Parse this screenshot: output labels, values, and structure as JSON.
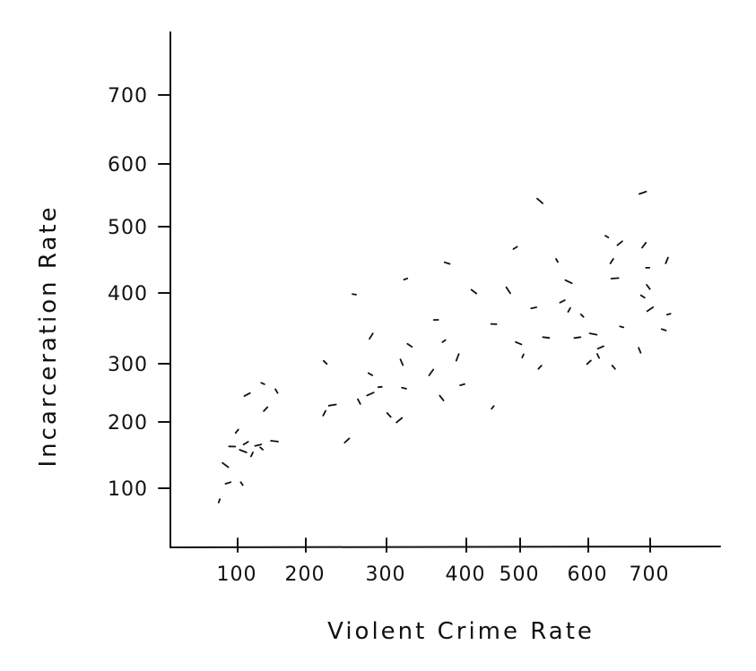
{
  "chart_data": {
    "type": "scatter",
    "title": "",
    "xlabel": "Violent Crime Rate",
    "ylabel": "Incarceration Rate",
    "x_ticks": [
      100,
      200,
      300,
      400,
      500,
      600,
      700
    ],
    "y_ticks": [
      100,
      200,
      300,
      400,
      500,
      600,
      700
    ],
    "x_tick_labels": [
      "100",
      "200",
      "300",
      "400",
      "500",
      "600",
      "700"
    ],
    "y_tick_labels": [
      "100",
      "200",
      "300",
      "400",
      "500",
      "600",
      "700"
    ],
    "xlim": [
      15,
      760
    ],
    "ylim": [
      10,
      800
    ],
    "grid": false,
    "legend": "none",
    "mark_color": "#111111",
    "points": [
      {
        "x": 73,
        "y": 81
      },
      {
        "x": 86,
        "y": 108
      },
      {
        "x": 82,
        "y": 135
      },
      {
        "x": 99,
        "y": 186
      },
      {
        "x": 92,
        "y": 163
      },
      {
        "x": 106,
        "y": 107
      },
      {
        "x": 112,
        "y": 168
      },
      {
        "x": 108,
        "y": 156
      },
      {
        "x": 121,
        "y": 151
      },
      {
        "x": 130,
        "y": 165
      },
      {
        "x": 135,
        "y": 160
      },
      {
        "x": 141,
        "y": 222
      },
      {
        "x": 154,
        "y": 171
      },
      {
        "x": 157,
        "y": 253
      },
      {
        "x": 114,
        "y": 247
      },
      {
        "x": 137,
        "y": 266
      },
      {
        "x": 223,
        "y": 215
      },
      {
        "x": 233,
        "y": 229
      },
      {
        "x": 224,
        "y": 302
      },
      {
        "x": 251,
        "y": 172
      },
      {
        "x": 260,
        "y": 398
      },
      {
        "x": 266,
        "y": 235
      },
      {
        "x": 280,
        "y": 248
      },
      {
        "x": 280,
        "y": 282
      },
      {
        "x": 281,
        "y": 339
      },
      {
        "x": 292,
        "y": 260
      },
      {
        "x": 303,
        "y": 212
      },
      {
        "x": 316,
        "y": 203
      },
      {
        "x": 322,
        "y": 258
      },
      {
        "x": 319,
        "y": 302
      },
      {
        "x": 324,
        "y": 421
      },
      {
        "x": 329,
        "y": 326
      },
      {
        "x": 356,
        "y": 285
      },
      {
        "x": 362,
        "y": 362
      },
      {
        "x": 369,
        "y": 241
      },
      {
        "x": 372,
        "y": 332
      },
      {
        "x": 376,
        "y": 445
      },
      {
        "x": 389,
        "y": 309
      },
      {
        "x": 395,
        "y": 264
      },
      {
        "x": 414,
        "y": 402
      },
      {
        "x": 449,
        "y": 225
      },
      {
        "x": 451,
        "y": 356
      },
      {
        "x": 478,
        "y": 404
      },
      {
        "x": 491,
        "y": 468
      },
      {
        "x": 497,
        "y": 329
      },
      {
        "x": 504,
        "y": 311
      },
      {
        "x": 520,
        "y": 379
      },
      {
        "x": 529,
        "y": 541
      },
      {
        "x": 529,
        "y": 294
      },
      {
        "x": 538,
        "y": 337
      },
      {
        "x": 554,
        "y": 449
      },
      {
        "x": 562,
        "y": 388
      },
      {
        "x": 571,
        "y": 417
      },
      {
        "x": 572,
        "y": 376
      },
      {
        "x": 584,
        "y": 337
      },
      {
        "x": 591,
        "y": 368
      },
      {
        "x": 601,
        "y": 302
      },
      {
        "x": 608,
        "y": 342
      },
      {
        "x": 616,
        "y": 311
      },
      {
        "x": 620,
        "y": 323
      },
      {
        "x": 630,
        "y": 485
      },
      {
        "x": 638,
        "y": 448
      },
      {
        "x": 643,
        "y": 422
      },
      {
        "x": 641,
        "y": 294
      },
      {
        "x": 651,
        "y": 475
      },
      {
        "x": 654,
        "y": 352
      },
      {
        "x": 683,
        "y": 319
      },
      {
        "x": 688,
        "y": 554
      },
      {
        "x": 688,
        "y": 395
      },
      {
        "x": 690,
        "y": 472
      },
      {
        "x": 696,
        "y": 438
      },
      {
        "x": 697,
        "y": 409
      },
      {
        "x": 700,
        "y": 377
      },
      {
        "x": 722,
        "y": 348
      },
      {
        "x": 727,
        "y": 449
      },
      {
        "x": 730,
        "y": 370
      }
    ]
  }
}
